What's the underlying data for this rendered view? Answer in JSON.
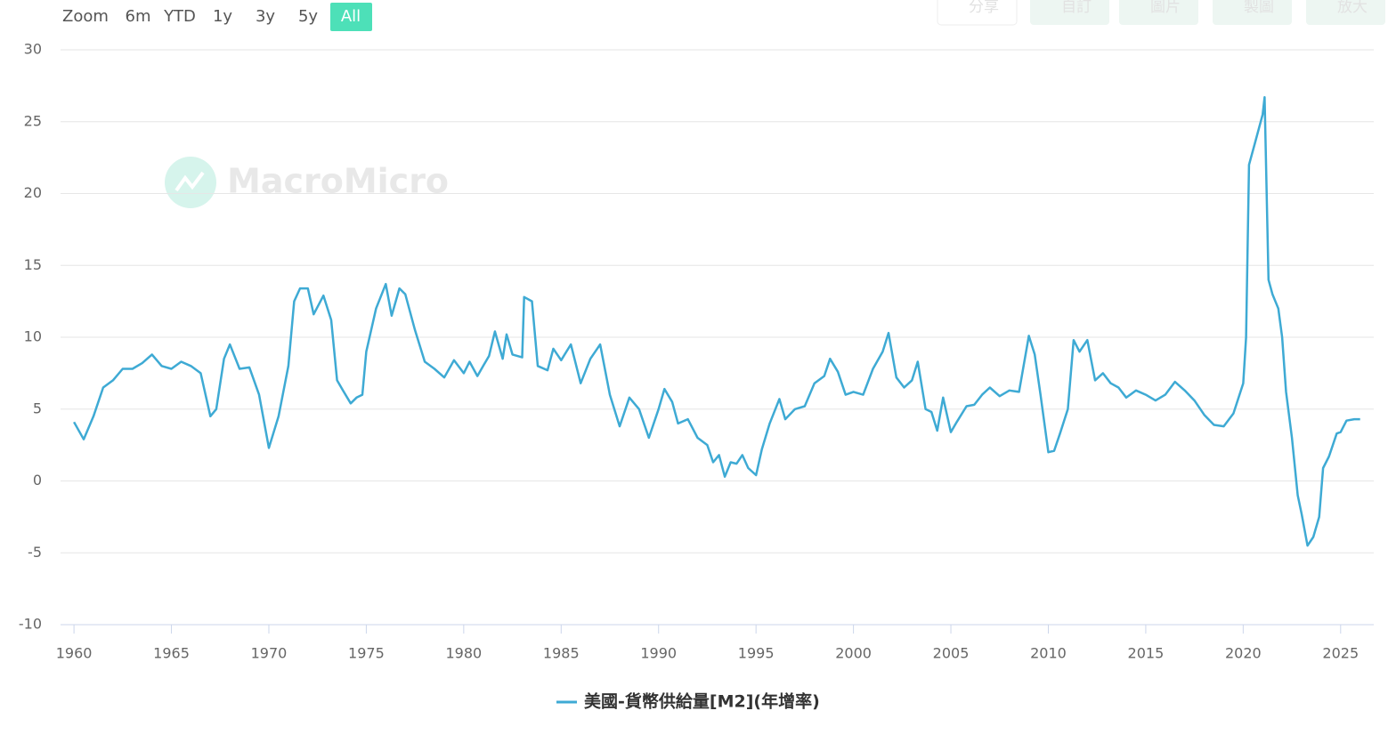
{
  "range_selector": {
    "label": "Zoom",
    "buttons": [
      "6m",
      "YTD",
      "1y",
      "3y",
      "5y",
      "All"
    ],
    "active": 5
  },
  "toolbar": [
    "分享",
    "自訂",
    "圖片",
    "製圖",
    "放大"
  ],
  "watermark": "MacroMicro",
  "chart_data": {
    "type": "line",
    "x": [
      1960.0,
      1960.5,
      1961.0,
      1961.5,
      1962.0,
      1962.5,
      1963.0,
      1963.5,
      1964.0,
      1964.5,
      1965.0,
      1965.5,
      1966.0,
      1966.5,
      1967.0,
      1967.3,
      1967.7,
      1968.0,
      1968.5,
      1969.0,
      1969.5,
      1970.0,
      1970.5,
      1971.0,
      1971.3,
      1971.6,
      1972.0,
      1972.3,
      1972.8,
      1973.2,
      1973.5,
      1973.8,
      1974.2,
      1974.5,
      1974.8,
      1975.0,
      1975.5,
      1976.0,
      1976.3,
      1976.7,
      1977.0,
      1977.5,
      1978.0,
      1978.5,
      1979.0,
      1979.5,
      1980.0,
      1980.3,
      1980.7,
      1981.0,
      1981.3,
      1981.6,
      1982.0,
      1982.2,
      1982.5,
      1983.0,
      1983.1,
      1983.5,
      1983.8,
      1984.3,
      1984.6,
      1985.0,
      1985.5,
      1986.0,
      1986.5,
      1987.0,
      1987.5,
      1988.0,
      1988.5,
      1989.0,
      1989.5,
      1990.0,
      1990.3,
      1990.7,
      1991.0,
      1991.5,
      1992.0,
      1992.5,
      1992.8,
      1993.1,
      1993.4,
      1993.7,
      1994.0,
      1994.3,
      1994.6,
      1995.0,
      1995.3,
      1995.7,
      1996.2,
      1996.5,
      1997.0,
      1997.5,
      1998.0,
      1998.5,
      1998.8,
      1999.2,
      1999.6,
      2000.0,
      2000.5,
      2001.0,
      2001.5,
      2001.8,
      2002.2,
      2002.6,
      2003.0,
      2003.3,
      2003.7,
      2004.0,
      2004.3,
      2004.6,
      2005.0,
      2005.3,
      2005.8,
      2006.2,
      2006.6,
      2007.0,
      2007.5,
      2008.0,
      2008.5,
      2009.0,
      2009.3,
      2009.6,
      2010.0,
      2010.3,
      2010.6,
      2011.0,
      2011.3,
      2011.6,
      2012.0,
      2012.4,
      2012.8,
      2013.2,
      2013.6,
      2014.0,
      2014.5,
      2015.0,
      2015.5,
      2016.0,
      2016.5,
      2017.0,
      2017.5,
      2018.0,
      2018.5,
      2019.0,
      2019.5,
      2020.0,
      2020.15,
      2020.3,
      2020.6,
      2021.0,
      2021.1,
      2021.3,
      2021.5,
      2021.8,
      2022.0,
      2022.2,
      2022.5,
      2022.8,
      2023.0,
      2023.3,
      2023.6,
      2023.9,
      2024.1,
      2024.4,
      2024.8,
      2025.0,
      2025.3,
      2025.7,
      2026.0
    ],
    "series": [
      {
        "name": "美國-貨幣供給量[M2](年增率)",
        "color": "#3eaad4",
        "values": [
          4.1,
          2.9,
          4.5,
          6.5,
          7.0,
          7.8,
          7.8,
          8.2,
          8.8,
          8.0,
          7.8,
          8.3,
          8.0,
          7.5,
          4.5,
          5.0,
          8.5,
          9.5,
          7.8,
          7.9,
          6.0,
          2.3,
          4.5,
          8.0,
          12.5,
          13.4,
          13.4,
          11.6,
          12.9,
          11.2,
          7.0,
          6.3,
          5.4,
          5.8,
          6.0,
          9.0,
          12.0,
          13.7,
          11.5,
          13.4,
          13.0,
          10.5,
          8.3,
          7.8,
          7.2,
          8.4,
          7.5,
          8.3,
          7.3,
          8.0,
          8.7,
          10.4,
          8.5,
          10.2,
          8.8,
          8.6,
          12.8,
          12.5,
          8.0,
          7.7,
          9.2,
          8.4,
          9.5,
          6.8,
          8.5,
          9.5,
          6.0,
          3.8,
          5.8,
          5.0,
          3.0,
          5.0,
          6.4,
          5.5,
          4.0,
          4.3,
          3.0,
          2.5,
          1.3,
          1.8,
          0.3,
          1.3,
          1.2,
          1.8,
          0.9,
          0.4,
          2.2,
          4.0,
          5.7,
          4.3,
          5.0,
          5.2,
          6.8,
          7.3,
          8.5,
          7.6,
          6.0,
          6.2,
          6.0,
          7.8,
          9.0,
          10.3,
          7.2,
          6.5,
          7.0,
          8.3,
          5.0,
          4.8,
          3.5,
          5.8,
          3.4,
          4.1,
          5.2,
          5.3,
          6.0,
          6.5,
          5.9,
          6.3,
          6.2,
          10.1,
          8.8,
          6.0,
          2.0,
          2.1,
          3.3,
          5.0,
          9.8,
          9.0,
          9.8,
          7.0,
          7.5,
          6.8,
          6.5,
          5.8,
          6.3,
          6.0,
          5.6,
          6.0,
          6.9,
          6.3,
          5.6,
          4.6,
          3.9,
          3.8,
          4.7,
          6.8,
          10.0,
          22.0,
          23.5,
          25.5,
          26.7,
          14.0,
          13.0,
          12.0,
          10.0,
          6.2,
          3.0,
          -1.0,
          -2.3,
          -4.5,
          -3.9,
          -2.5,
          0.9,
          1.7,
          3.3,
          3.4,
          4.2,
          4.3,
          4.3
        ]
      }
    ],
    "xlim": [
      1959.31,
      2026.7
    ],
    "xticks": [
      1960,
      1965,
      1970,
      1975,
      1980,
      1985,
      1990,
      1995,
      2000,
      2005,
      2010,
      2015,
      2020,
      2025
    ],
    "ylim": [
      -10,
      30
    ],
    "yticks": [
      -10,
      -5,
      0,
      5,
      10,
      15,
      20,
      25,
      30
    ],
    "grid": true,
    "legend": "bottom"
  }
}
